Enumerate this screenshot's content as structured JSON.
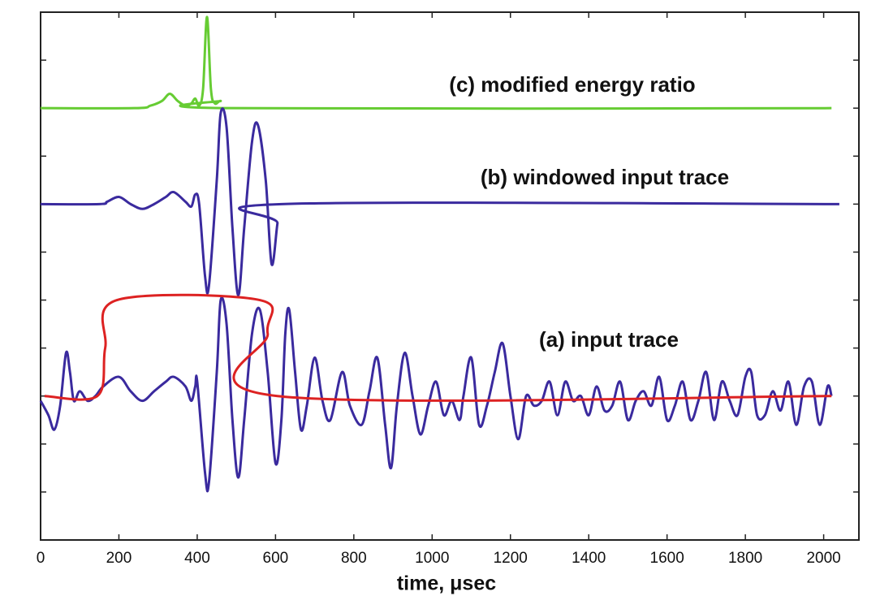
{
  "chart_data": {
    "type": "line",
    "xlabel": "time,  μsec",
    "xlim": [
      0,
      2090
    ],
    "xticks": [
      0,
      200,
      400,
      600,
      800,
      1000,
      1200,
      1400,
      1600,
      1800,
      2000
    ],
    "ylim": [
      0,
      11
    ],
    "yticks": [
      1,
      2,
      3,
      4,
      5,
      6,
      7,
      8,
      9,
      10
    ],
    "series": [
      {
        "name": "(c) modified energy ratio",
        "color": "#66cc33",
        "x": [
          0,
          240,
          280,
          310,
          330,
          350,
          370,
          385,
          395,
          405,
          415,
          425,
          435,
          445,
          460,
          475,
          2020
        ],
        "values": [
          9.0,
          9.0,
          9.05,
          9.15,
          9.3,
          9.15,
          9.05,
          9.1,
          9.2,
          9.05,
          9.4,
          10.9,
          9.4,
          9.1,
          9.15,
          9.0,
          9.0
        ]
      },
      {
        "name": "(b) windowed input trace",
        "color": "#3a2a9e",
        "x": [
          0,
          150,
          170,
          200,
          230,
          260,
          290,
          320,
          340,
          370,
          385,
          395,
          405,
          420,
          430,
          450,
          460,
          475,
          490,
          505,
          520,
          540,
          555,
          575,
          590,
          605,
          615,
          2040
        ],
        "values": [
          7.0,
          7.0,
          7.05,
          7.15,
          7.0,
          6.9,
          7.0,
          7.15,
          7.25,
          7.05,
          6.95,
          7.2,
          7.0,
          5.5,
          5.3,
          7.5,
          8.9,
          8.6,
          6.5,
          5.1,
          6.5,
          8.3,
          8.65,
          7.5,
          5.75,
          6.6,
          7.0,
          7.0
        ]
      },
      {
        "name": "(a) input trace",
        "color": "#3a2a9e",
        "x": [
          0,
          20,
          35,
          50,
          65,
          75,
          85,
          100,
          120,
          140,
          160,
          200,
          230,
          260,
          290,
          320,
          340,
          370,
          385,
          395,
          400,
          420,
          430,
          450,
          460,
          475,
          490,
          505,
          520,
          540,
          560,
          580,
          600,
          615,
          625,
          635,
          650,
          665,
          680,
          700,
          720,
          740,
          770,
          790,
          820,
          840,
          860,
          880,
          895,
          910,
          930,
          950,
          970,
          990,
          1010,
          1030,
          1050,
          1070,
          1080,
          1100,
          1120,
          1140,
          1160,
          1180,
          1200,
          1220,
          1240,
          1260,
          1280,
          1300,
          1320,
          1340,
          1360,
          1380,
          1400,
          1420,
          1440,
          1460,
          1480,
          1500,
          1520,
          1540,
          1560,
          1580,
          1600,
          1620,
          1640,
          1660,
          1680,
          1700,
          1720,
          1740,
          1760,
          1780,
          1800,
          1815,
          1830,
          1850,
          1870,
          1890,
          1910,
          1930,
          1950,
          1970,
          1990,
          2010,
          2020
        ],
        "values": [
          2.9,
          2.6,
          2.3,
          2.8,
          3.9,
          3.5,
          2.9,
          3.1,
          2.9,
          3.0,
          3.2,
          3.4,
          3.1,
          2.9,
          3.1,
          3.3,
          3.4,
          3.2,
          2.9,
          3.2,
          3.3,
          1.4,
          1.2,
          3.5,
          5.0,
          4.5,
          2.5,
          1.3,
          2.5,
          4.3,
          4.8,
          3.5,
          1.6,
          2.5,
          4.3,
          4.8,
          3.5,
          2.3,
          2.8,
          3.8,
          2.9,
          2.5,
          3.5,
          2.8,
          2.4,
          3.1,
          3.8,
          2.4,
          1.5,
          2.8,
          3.9,
          3.0,
          2.2,
          2.8,
          3.3,
          2.6,
          2.9,
          2.5,
          3.0,
          3.8,
          2.4,
          2.8,
          3.5,
          4.1,
          3.0,
          2.1,
          3.0,
          2.8,
          2.9,
          3.3,
          2.6,
          3.3,
          2.9,
          3.0,
          2.6,
          3.2,
          2.7,
          2.8,
          3.3,
          2.5,
          2.9,
          3.1,
          2.8,
          3.4,
          2.5,
          2.8,
          3.3,
          2.5,
          2.9,
          3.5,
          2.5,
          3.3,
          2.9,
          2.6,
          3.4,
          3.5,
          2.6,
          2.6,
          3.1,
          2.7,
          3.3,
          2.4,
          3.2,
          3.3,
          2.4,
          3.2,
          3.0
        ]
      },
      {
        "color": "#dd2222",
        "x": [
          10,
          145,
          165,
          195,
          560,
          580,
          605,
          2020
        ],
        "values": [
          3.0,
          3.0,
          4.0,
          5.0,
          5.0,
          4.3,
          3.0,
          3.0
        ]
      }
    ]
  }
}
